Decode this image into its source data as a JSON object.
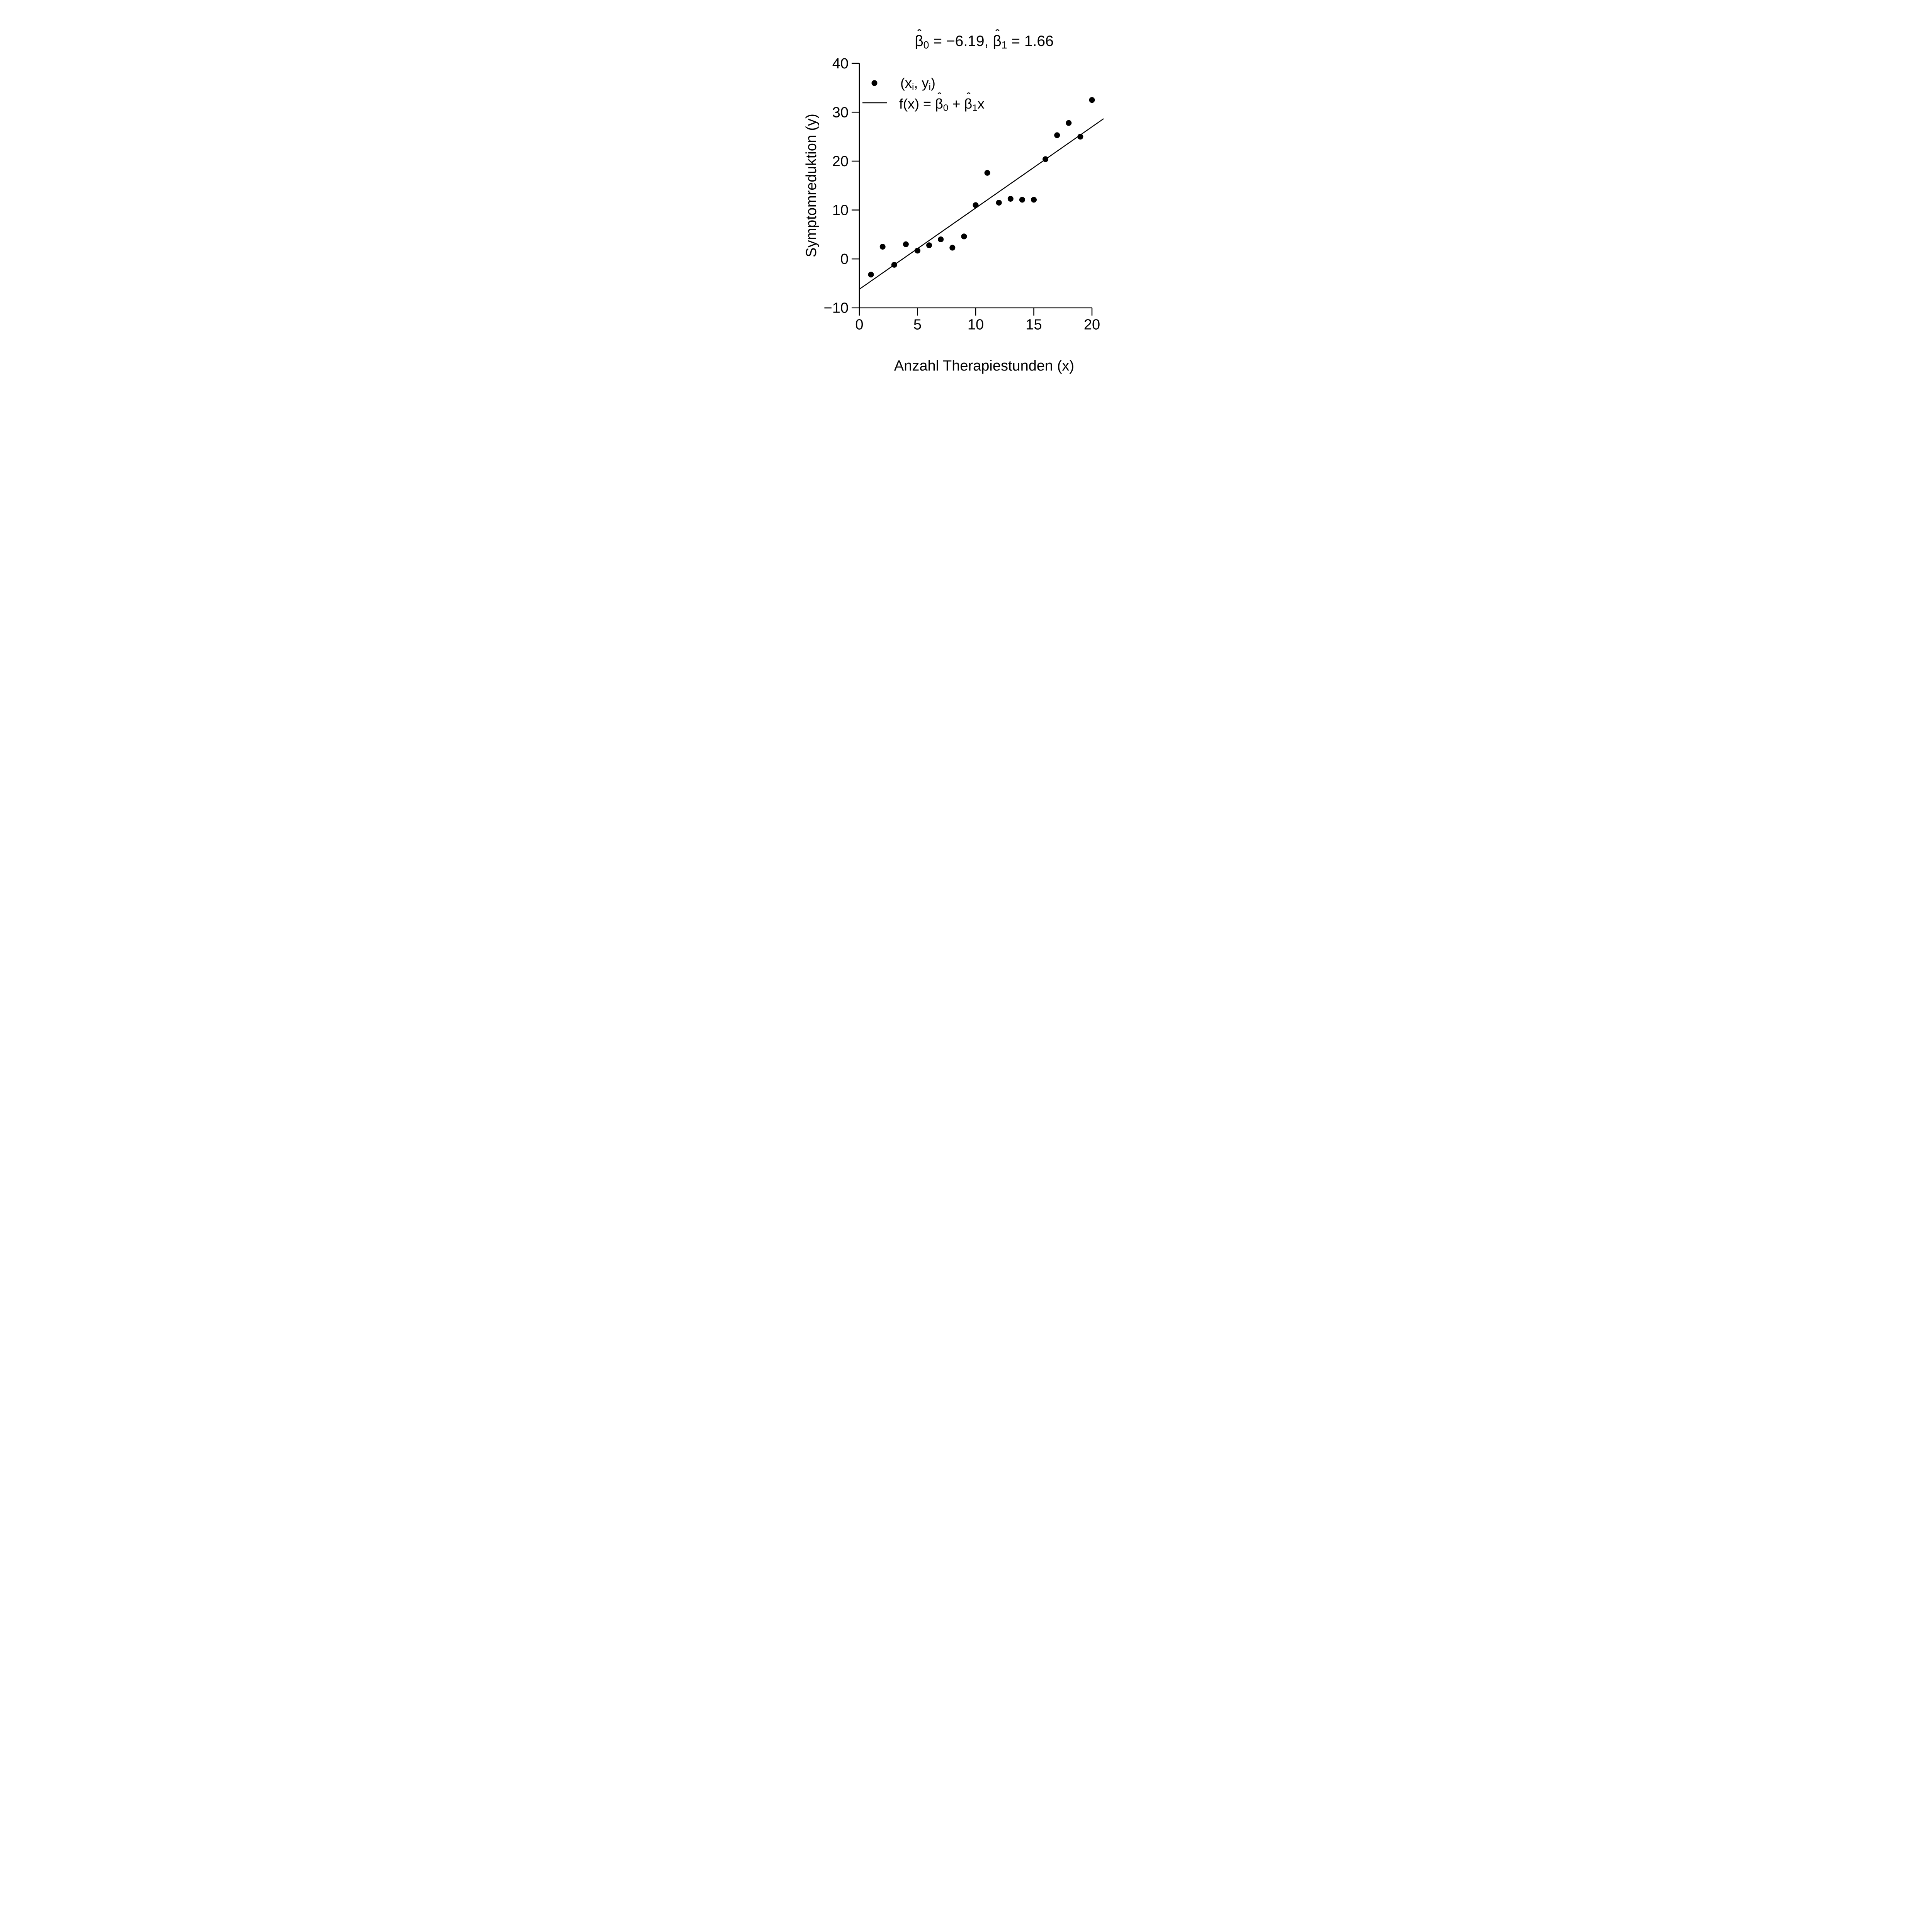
{
  "chart_data": {
    "type": "scatter",
    "title": "β̂₀ = −6.19, β̂₁ = 1.66",
    "xlabel": "Anzahl Therapiestunden (x)",
    "ylabel": "Symptomreduktion (y)",
    "x": [
      1,
      2,
      3,
      4,
      5,
      6,
      7,
      8,
      9,
      10,
      11,
      12,
      13,
      14,
      15,
      16,
      17,
      18,
      19,
      20
    ],
    "y": [
      -3.2,
      2.5,
      -1.2,
      3.0,
      1.7,
      2.8,
      4.0,
      2.3,
      4.6,
      11.0,
      17.6,
      11.5,
      12.3,
      12.1,
      12.1,
      20.4,
      25.3,
      27.8,
      25.0,
      32.5
    ],
    "regression_line": {
      "beta0": -6.19,
      "beta1": 1.66,
      "x_start": 0,
      "x_end": 21
    },
    "xlim": [
      0,
      21.2
    ],
    "ylim": [
      -10,
      40
    ],
    "xticks": [
      0,
      5,
      10,
      15,
      20
    ],
    "yticks": [
      -10,
      0,
      10,
      20,
      30,
      40
    ],
    "ytick_labels": [
      "−10",
      "0",
      "10",
      "20",
      "30",
      "40"
    ],
    "xtick_labels": [
      "0",
      "5",
      "10",
      "15",
      "20"
    ],
    "grid": false,
    "legend": [
      "(xᵢ, yᵢ)",
      "f(x) = β̂₀ + β̂₁x"
    ],
    "legend_position": "top-left-inside",
    "point_color": "#000000",
    "line_color": "#000000",
    "background": "#ffffff"
  },
  "title_parts": {
    "hat": "ˆ",
    "b0_sym": "β",
    "b0_sub": "0",
    "b0_val": " = −6.19, ",
    "b1_sym": "β",
    "b1_sub": "1",
    "b1_val": " = 1.66"
  },
  "legend_parts": {
    "point": {
      "open": "(x",
      "sub1": "i",
      "mid": ", y",
      "sub2": "i",
      "close": ")"
    },
    "line": {
      "f": "f(x) = ",
      "hat": "ˆ",
      "b0_sym": "β",
      "b0_sub": "0",
      "plus": " + ",
      "b1_sym": "β",
      "b1_sub": "1",
      "x": "x"
    }
  },
  "axes": {
    "xlabel": "Anzahl Therapiestunden (x)",
    "ylabel": "Symptomreduktion (y)"
  }
}
